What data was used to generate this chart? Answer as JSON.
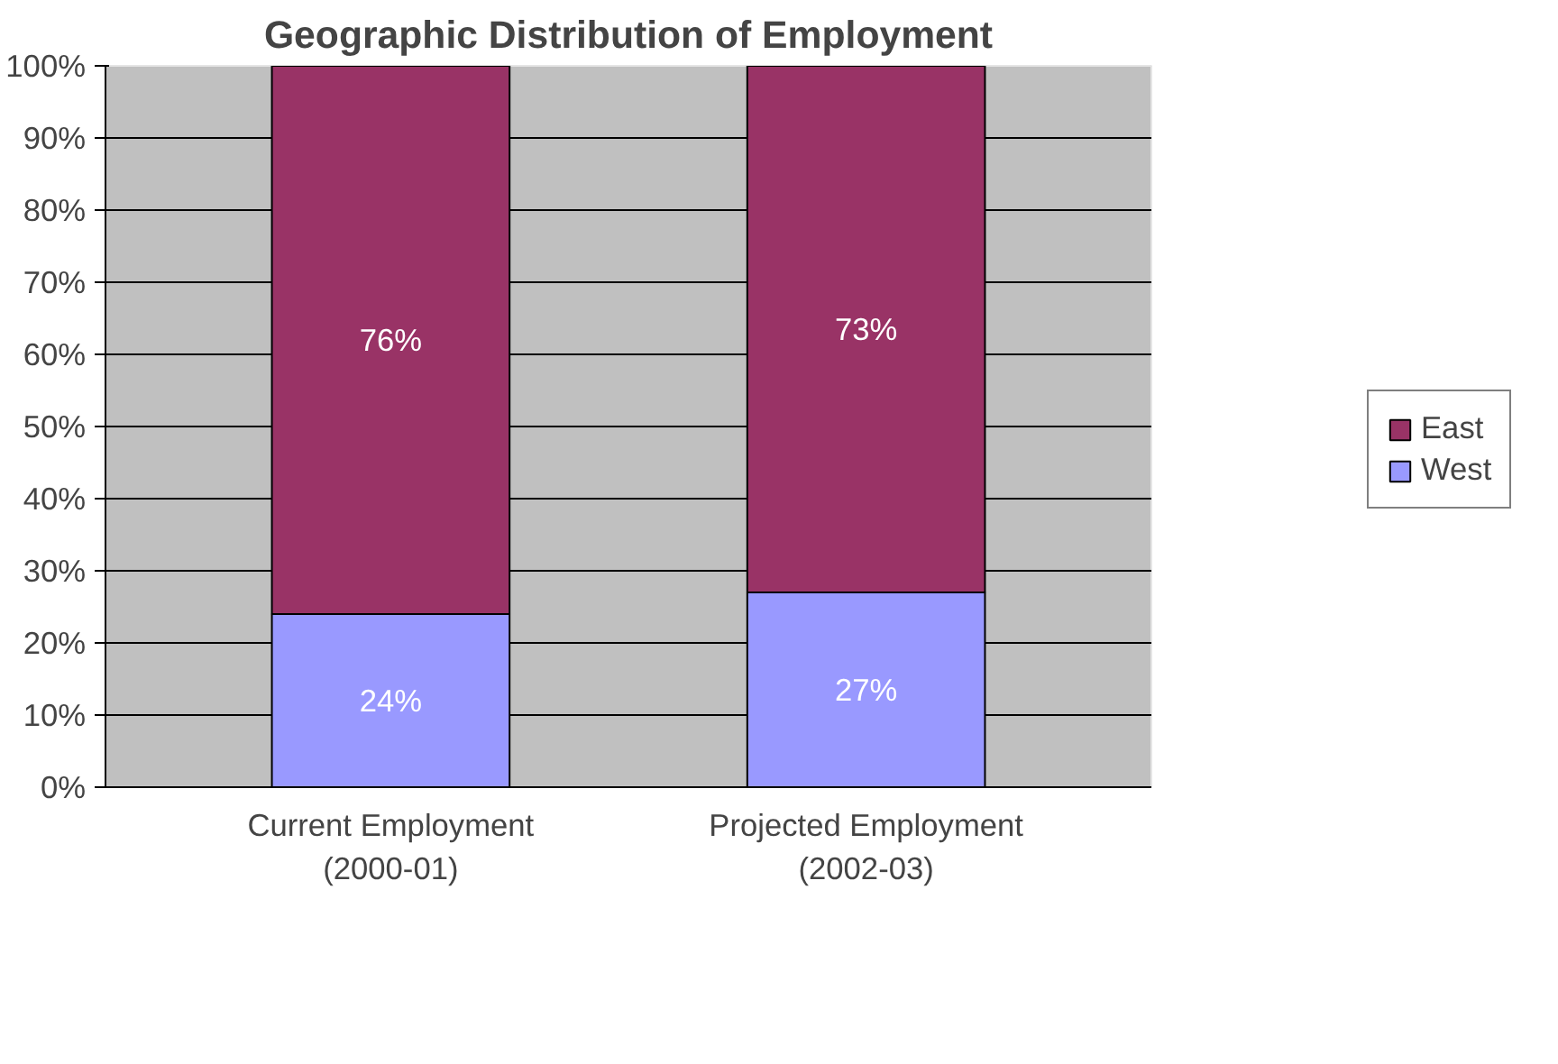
{
  "chart_data": {
    "type": "bar",
    "title": "Geographic Distribution of Employment",
    "categories": [
      "Current Employment\n(2000-01)",
      "Projected Employment\n(2002-03)"
    ],
    "stacked": true,
    "series": [
      {
        "name": "West",
        "color": "#9999ff",
        "values": [
          24,
          27
        ],
        "value_labels": [
          "24%",
          "27%"
        ]
      },
      {
        "name": "East",
        "color": "#993366",
        "values": [
          76,
          73
        ],
        "value_labels": [
          "76%",
          "73%"
        ]
      }
    ],
    "ylim": [
      0,
      100
    ],
    "yticks": [
      {
        "value": 0,
        "label": "0%"
      },
      {
        "value": 10,
        "label": "10%"
      },
      {
        "value": 20,
        "label": "20%"
      },
      {
        "value": 30,
        "label": "30%"
      },
      {
        "value": 40,
        "label": "40%"
      },
      {
        "value": 50,
        "label": "50%"
      },
      {
        "value": 60,
        "label": "60%"
      },
      {
        "value": 70,
        "label": "70%"
      },
      {
        "value": 80,
        "label": "80%"
      },
      {
        "value": 90,
        "label": "90%"
      },
      {
        "value": 100,
        "label": "100%"
      }
    ],
    "grid": "y",
    "legend": "right"
  }
}
